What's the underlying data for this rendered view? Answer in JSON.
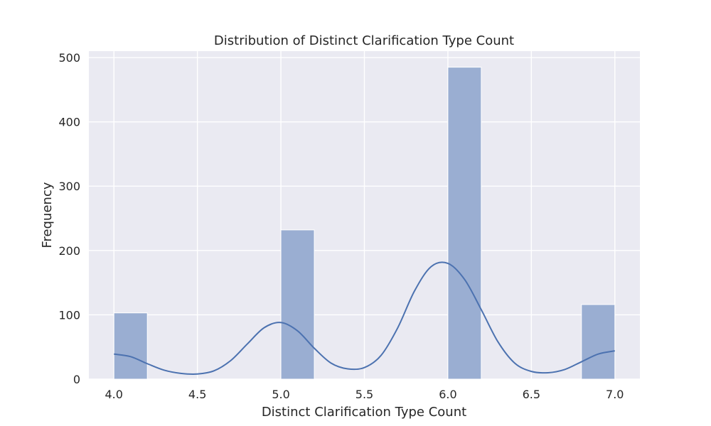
{
  "chart_data": {
    "type": "bar",
    "title": "Distribution of Distinct Clarification Type Count",
    "xlabel": "Distinct Clarification Type Count",
    "ylabel": "Frequency",
    "xlim": [
      3.85,
      7.15
    ],
    "ylim": [
      0,
      510
    ],
    "x_ticks": [
      "4.0",
      "4.5",
      "5.0",
      "5.5",
      "6.0",
      "6.5",
      "7.0"
    ],
    "y_ticks": [
      "0",
      "100",
      "200",
      "300",
      "400",
      "500"
    ],
    "grid": true,
    "bars": [
      {
        "x_start": 4.0,
        "x_end": 4.2,
        "value": 103
      },
      {
        "x_start": 5.0,
        "x_end": 5.2,
        "value": 232
      },
      {
        "x_start": 6.0,
        "x_end": 6.2,
        "value": 485
      },
      {
        "x_start": 6.8,
        "x_end": 7.0,
        "value": 116
      }
    ],
    "kde": {
      "x": [
        4.0,
        4.1,
        4.2,
        4.3,
        4.4,
        4.5,
        4.6,
        4.7,
        4.8,
        4.9,
        5.0,
        5.1,
        5.2,
        5.3,
        5.4,
        5.5,
        5.6,
        5.7,
        5.8,
        5.9,
        6.0,
        6.1,
        6.2,
        6.3,
        6.4,
        6.5,
        6.6,
        6.7,
        6.8,
        6.9,
        7.0
      ],
      "y": [
        39,
        35,
        24,
        14,
        9,
        8,
        13,
        29,
        55,
        80,
        88,
        75,
        48,
        25,
        16,
        18,
        37,
        80,
        137,
        175,
        180,
        155,
        108,
        58,
        25,
        12,
        10,
        15,
        27,
        39,
        44
      ]
    },
    "colors": {
      "background": "#eaeaf2",
      "grid": "#ffffff",
      "bar": "#9aaed2",
      "line": "#4c72b0"
    }
  }
}
